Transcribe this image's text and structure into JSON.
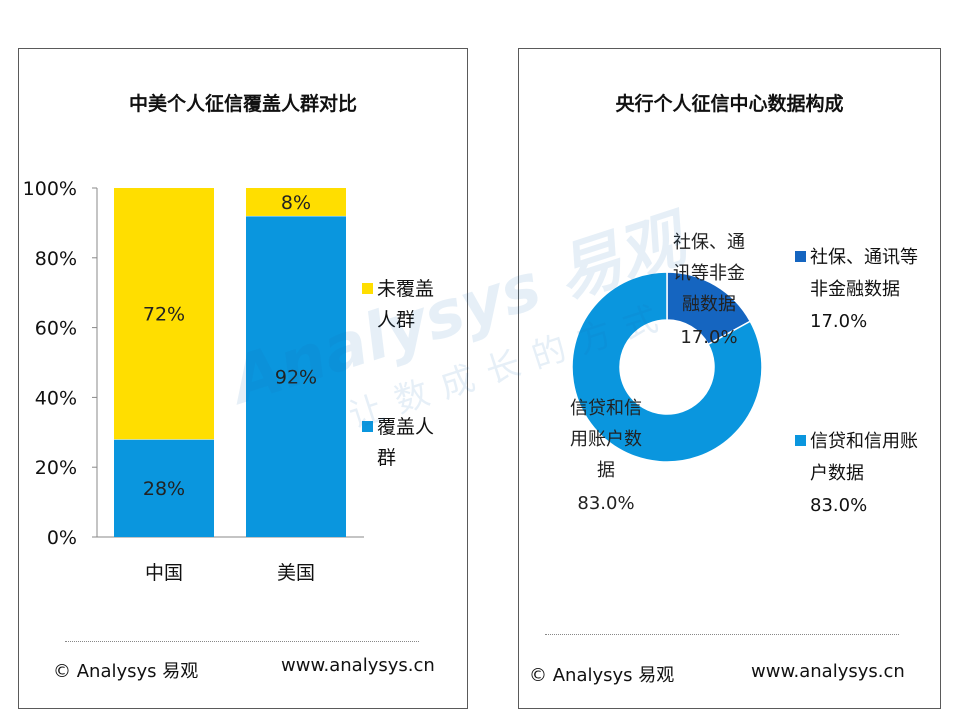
{
  "left_panel": {
    "title": "中美个人征信覆盖人群对比",
    "footer_copy": "© Analysys 易观",
    "footer_url": "www.analysys.cn"
  },
  "right_panel": {
    "title": "央行个人征信中心数据构成",
    "footer_copy": "© Analysys 易观",
    "footer_url": "www.analysys.cn"
  },
  "colors": {
    "covered": "#0a96de",
    "uncovered": "#ffde00",
    "donut_small": "#1565c0",
    "donut_large": "#0a96de"
  },
  "chart_data": [
    {
      "type": "bar",
      "stacked": true,
      "percent": true,
      "title": "中美个人征信覆盖人群对比",
      "categories": [
        "中国",
        "美国"
      ],
      "ylim": [
        0,
        100
      ],
      "yticks": [
        "0%",
        "20%",
        "40%",
        "60%",
        "80%",
        "100%"
      ],
      "series": [
        {
          "name": "覆盖人群",
          "legend_lines": [
            "覆盖人",
            "群"
          ],
          "values": [
            28,
            92
          ],
          "labels": [
            "28%",
            "92%"
          ]
        },
        {
          "name": "未覆盖人群",
          "legend_lines": [
            "未覆盖",
            "人群"
          ],
          "values": [
            72,
            8
          ],
          "labels": [
            "72%",
            "8%"
          ]
        }
      ],
      "legend_position": "right"
    },
    {
      "type": "pie",
      "donut": true,
      "title": "央行个人征信中心数据构成",
      "slices": [
        {
          "name": "社保、通讯等非金融数据",
          "value": 17.0,
          "pct_label": "17.0%",
          "label_lines": [
            "社保、通",
            "讯等非金",
            "融数据"
          ],
          "legend_lines": [
            "社保、通讯等",
            "非金融数据"
          ]
        },
        {
          "name": "信贷和信用账户数据",
          "value": 83.0,
          "pct_label": "83.0%",
          "label_lines": [
            "信贷和信",
            "用账户数",
            "据"
          ],
          "legend_lines": [
            "信贷和信用账",
            "户数据"
          ]
        }
      ],
      "legend_position": "right"
    }
  ]
}
